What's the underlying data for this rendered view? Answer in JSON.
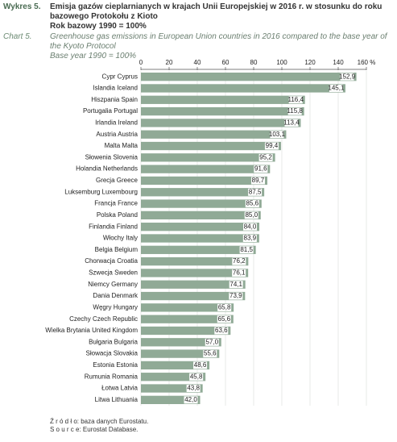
{
  "chart_data": {
    "type": "bar",
    "orientation": "horizontal",
    "label_pl": "Wykres 5.",
    "title": "Emisja gazów cieplarnianych w krajach Unii Europejskiej w 2016 r. w stosunku do roku bazowego Protokołu z Kioto",
    "subtitle": "Rok bazowy 1990 = 100%",
    "label_en": "Chart 5.",
    "title_en": "Greenhouse gas emissions in European Union countries in 2016 compared to the base year of the Kyoto Protocol",
    "subtitle_en": "Base year 1990 = 100%",
    "source_pl": "Ź r ó d ł o: baza danych Eurostatu.",
    "source_en": "S o u r c e: Eurostat Database.",
    "categories": [
      "Cypr Cyprus",
      "Islandia Iceland",
      "Hiszpania Spain",
      "Portugalia Portugal",
      "Irlandia Ireland",
      "Austria Austria",
      "Malta Malta",
      "Słowenia Slovenia",
      "Holandia Netherlands",
      "Grecja Greece",
      "Luksemburg Luxembourg",
      "Francja France",
      "Polska Poland",
      "Finlandia Finland",
      "Włochy Italy",
      "Belgia Belgium",
      "Chorwacja Croatia",
      "Szwecja Sweden",
      "Niemcy Germany",
      "Dania Denmark",
      "Węgry Hungary",
      "Czechy Czech Republic",
      "Wielka Brytania United Kingdom",
      "Bułgaria Bulgaria",
      "Słowacja Slovakia",
      "Estonia Estonia",
      "Rumunia Romania",
      "Łotwa Latvia",
      "Litwa Lithuania"
    ],
    "values": [
      152.9,
      145.1,
      116.4,
      115.8,
      113.4,
      103.1,
      99.4,
      95.2,
      91.6,
      89.7,
      87.5,
      85.6,
      85.0,
      84.0,
      83.9,
      81.5,
      76.2,
      76.1,
      74.1,
      73.9,
      65.8,
      65.6,
      63.6,
      57.0,
      55.6,
      48.6,
      45.8,
      43.8,
      42.0
    ],
    "value_labels": [
      "152,9",
      "145,1",
      "116,4",
      "115,8",
      "113,4",
      "103,1",
      "99,4",
      "95,2",
      "91,6",
      "89,7",
      "87,5",
      "85,6",
      "85,0",
      "84,0",
      "83,9",
      "81,5",
      "76,2",
      "76,1",
      "74,1",
      "73,9",
      "65,8",
      "65,6",
      "63,6",
      "57,0",
      "55,6",
      "48,6",
      "45,8",
      "43,8",
      "42,0"
    ],
    "color": "#90aa96",
    "xlim": [
      0,
      160
    ],
    "xticks": [
      0,
      20,
      40,
      60,
      80,
      100,
      120,
      140,
      {
        "value": 160,
        "label": "160 %"
      }
    ],
    "grid": true
  }
}
